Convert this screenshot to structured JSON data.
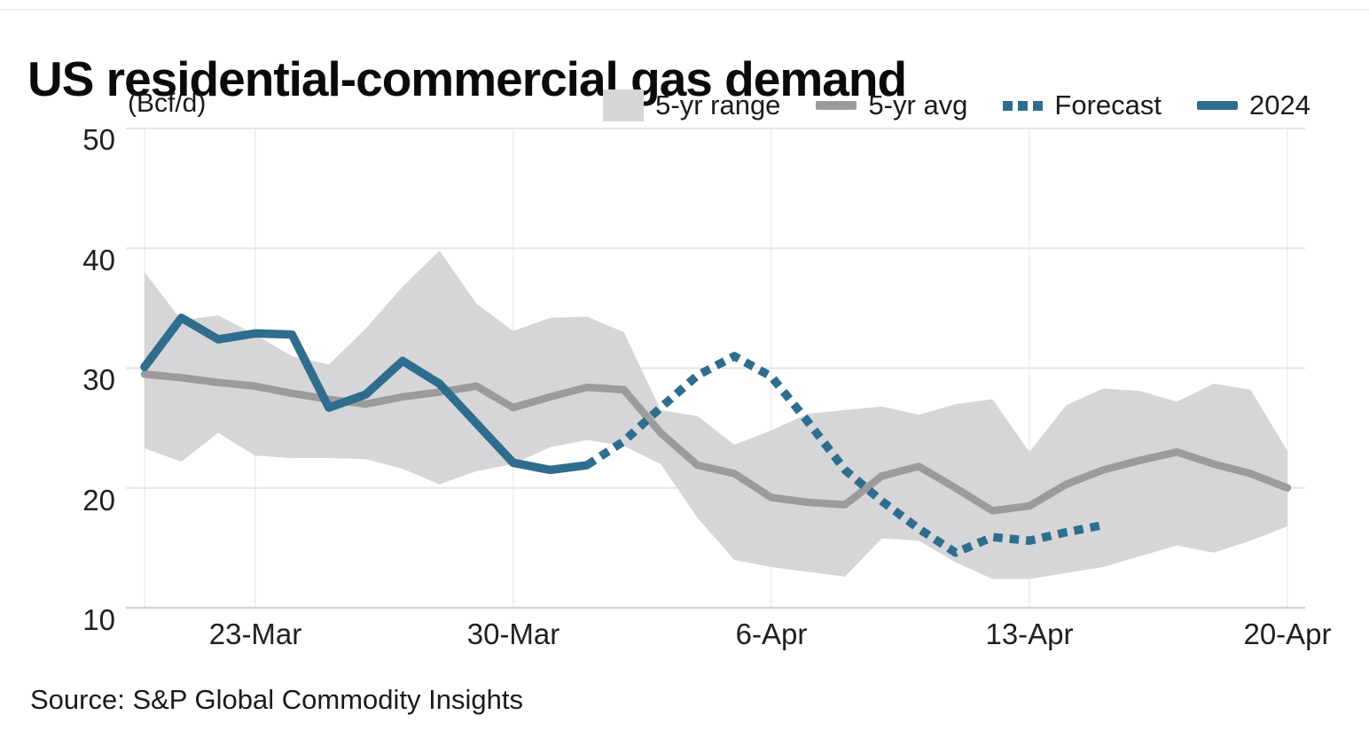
{
  "title": "US residential-commercial gas demand",
  "y_axis_unit": "(Bcf/d)",
  "source": "Source: S&P Global Commodity Insights",
  "y_ticks": [
    "50",
    "40",
    "30",
    "20",
    "10"
  ],
  "x_ticks": [
    "23-Mar",
    "30-Mar",
    "6-Apr",
    "13-Apr",
    "20-Apr"
  ],
  "legend": [
    {
      "label": "5-yr range",
      "swatch": "band-square"
    },
    {
      "label": "5-yr avg",
      "swatch": "gray-line"
    },
    {
      "label": "Forecast",
      "swatch": "blue-dotted"
    },
    {
      "label": "2024",
      "swatch": "blue-line"
    }
  ],
  "colors": {
    "blue": "#2e6d8d",
    "gray_line": "#9b9b9e",
    "band": "#d6d6d8",
    "grid": "#e6e6e8",
    "vgrid": "#ededee",
    "axis_line": "#d5d5d5",
    "text": "#1a1a1a"
  },
  "chart_data": {
    "type": "line",
    "title": "US residential-commercial gas demand",
    "ylabel": "(Bcf/d)",
    "ylim": [
      10,
      50
    ],
    "yticks": [
      50,
      40,
      30,
      20,
      10
    ],
    "grid": "horizontal gridlines at 10-unit steps, faint vertical gridlines at weekly ticks",
    "legend_position": "top-right",
    "x": [
      "20-Mar",
      "21-Mar",
      "22-Mar",
      "23-Mar",
      "24-Mar",
      "25-Mar",
      "26-Mar",
      "27-Mar",
      "28-Mar",
      "29-Mar",
      "30-Mar",
      "31-Mar",
      "1-Apr",
      "2-Apr",
      "3-Apr",
      "4-Apr",
      "5-Apr",
      "6-Apr",
      "7-Apr",
      "8-Apr",
      "9-Apr",
      "10-Apr",
      "11-Apr",
      "12-Apr",
      "13-Apr",
      "14-Apr",
      "15-Apr",
      "16-Apr",
      "17-Apr",
      "18-Apr",
      "19-Apr",
      "20-Apr"
    ],
    "xtick_labels": [
      "23-Mar",
      "30-Mar",
      "6-Apr",
      "13-Apr",
      "20-Apr"
    ],
    "xtick_indices": [
      3,
      10,
      17,
      24,
      31
    ],
    "series": [
      {
        "name": "5-yr range",
        "type": "band",
        "upper": [
          38.0,
          34.0,
          34.4,
          32.8,
          31.0,
          30.3,
          33.3,
          36.8,
          39.8,
          35.4,
          33.1,
          34.2,
          34.3,
          33.0,
          26.5,
          26.0,
          23.6,
          24.8,
          26.2,
          26.5,
          26.8,
          26.1,
          27.0,
          27.4,
          23.0,
          26.9,
          28.3,
          28.1,
          27.2,
          28.7,
          28.2,
          23.1
        ],
        "lower": [
          23.3,
          22.2,
          24.6,
          22.7,
          22.5,
          22.5,
          22.4,
          21.6,
          20.3,
          21.4,
          22.0,
          23.4,
          24.0,
          23.5,
          22.0,
          17.5,
          14.0,
          13.4,
          13.0,
          12.6,
          15.8,
          15.6,
          13.8,
          12.4,
          12.4,
          12.9,
          13.4,
          14.3,
          15.2,
          14.6,
          15.6,
          16.8
        ]
      },
      {
        "name": "5-yr avg",
        "type": "line",
        "color_key": "gray_line",
        "values": [
          29.5,
          29.2,
          28.8,
          28.5,
          27.9,
          27.4,
          27.0,
          27.6,
          28.0,
          28.5,
          26.7,
          27.6,
          28.4,
          28.2,
          24.6,
          21.9,
          21.2,
          19.2,
          18.8,
          18.6,
          21.0,
          21.8,
          20.0,
          18.1,
          18.5,
          20.3,
          21.5,
          22.3,
          23.0,
          22.0,
          21.2,
          20.0
        ]
      },
      {
        "name": "Forecast",
        "type": "dotted-line",
        "color_key": "blue",
        "values": [
          null,
          null,
          null,
          null,
          null,
          null,
          null,
          null,
          null,
          null,
          null,
          null,
          21.9,
          23.9,
          26.7,
          29.4,
          31.0,
          29.3,
          25.5,
          21.5,
          18.9,
          16.6,
          14.6,
          15.9,
          15.6,
          16.3,
          16.9,
          null,
          null,
          null,
          null,
          null
        ]
      },
      {
        "name": "2024",
        "type": "line",
        "color_key": "blue",
        "values": [
          30.1,
          34.2,
          32.4,
          32.9,
          32.8,
          26.7,
          27.8,
          30.6,
          28.7,
          25.4,
          22.1,
          21.5,
          21.9,
          null,
          null,
          null,
          null,
          null,
          null,
          null,
          null,
          null,
          null,
          null,
          null,
          null,
          null,
          null,
          null,
          null,
          null,
          null
        ]
      }
    ]
  }
}
